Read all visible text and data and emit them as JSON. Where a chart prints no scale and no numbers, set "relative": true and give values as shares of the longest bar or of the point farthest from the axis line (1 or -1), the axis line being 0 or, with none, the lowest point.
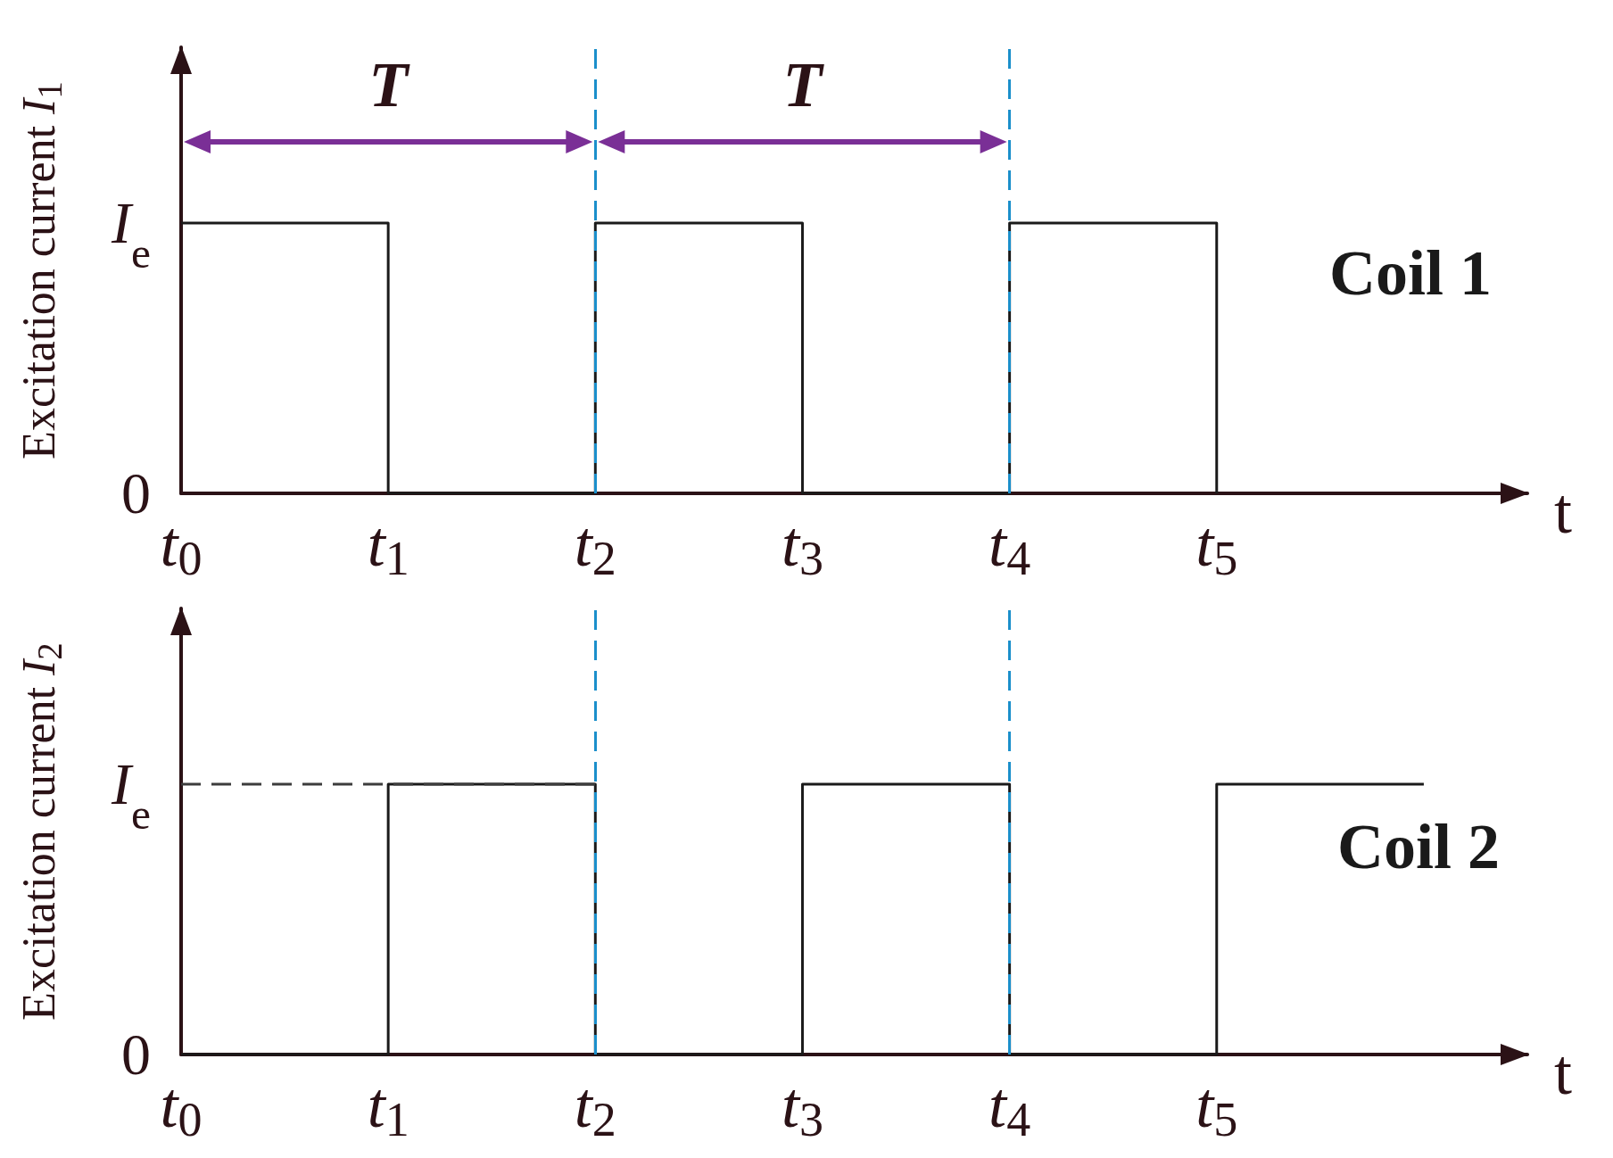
{
  "chart_data": [
    {
      "type": "step",
      "relative": true,
      "ylabel": "Excitation current I$_{1}$",
      "xlabel": "t",
      "x": [
        0,
        1,
        2,
        3,
        4,
        5
      ],
      "series": [
        {
          "name": "Coil 1",
          "color": "#1a1a1a",
          "values": [
            1,
            0,
            1,
            0,
            1,
            0
          ]
        }
      ],
      "xlim": [
        0,
        6.5
      ],
      "xticks": [
        {
          "value": 0,
          "label": "t$_{0}$"
        },
        {
          "value": 1,
          "label": "t$_{1}$"
        },
        {
          "value": 2,
          "label": "t$_{2}$"
        },
        {
          "value": 3,
          "label": "t$_{3}$"
        },
        {
          "value": 4,
          "label": "t$_{4}$"
        },
        {
          "value": 5,
          "label": "t$_{5}$"
        }
      ],
      "ref_lines": [
        {
          "axis": "x",
          "value": 2,
          "color": "#1b8fcb",
          "line_style": "dashed"
        },
        {
          "axis": "x",
          "value": 4,
          "color": "#1b8fcb",
          "line_style": "dashed"
        }
      ],
      "annotations": [
        "T",
        "T",
        "I$_{e}$",
        "0"
      ],
      "grid": false,
      "legend": false
    },
    {
      "type": "step",
      "relative": true,
      "ylabel": "Excitation current I$_{2}$",
      "xlabel": "t",
      "x": [
        0,
        1,
        2,
        3,
        4,
        5,
        6
      ],
      "series": [
        {
          "name": "Coil 2",
          "color": "#1a1a1a",
          "values": [
            0,
            1,
            0,
            1,
            0,
            1,
            1
          ]
        },
        {
          "type": "line",
          "x": [
            0,
            2
          ],
          "values": [
            1,
            1
          ],
          "color": "#3c3c3c",
          "line_style": "dashed"
        }
      ],
      "xlim": [
        0,
        6.5
      ],
      "xticks": [
        {
          "value": 0,
          "label": "t$_{0}$"
        },
        {
          "value": 1,
          "label": "t$_{1}$"
        },
        {
          "value": 2,
          "label": "t$_{2}$"
        },
        {
          "value": 3,
          "label": "t$_{3}$"
        },
        {
          "value": 4,
          "label": "t$_{4}$"
        },
        {
          "value": 5,
          "label": "t$_{5}$"
        }
      ],
      "ref_lines": [
        {
          "axis": "x",
          "value": 2,
          "color": "#1b8fcb",
          "line_style": "dashed"
        },
        {
          "axis": "x",
          "value": 4,
          "color": "#1b8fcb",
          "line_style": "dashed"
        }
      ],
      "annotations": [
        "I$_{e}$",
        "0"
      ],
      "grid": false,
      "legend": false
    }
  ]
}
